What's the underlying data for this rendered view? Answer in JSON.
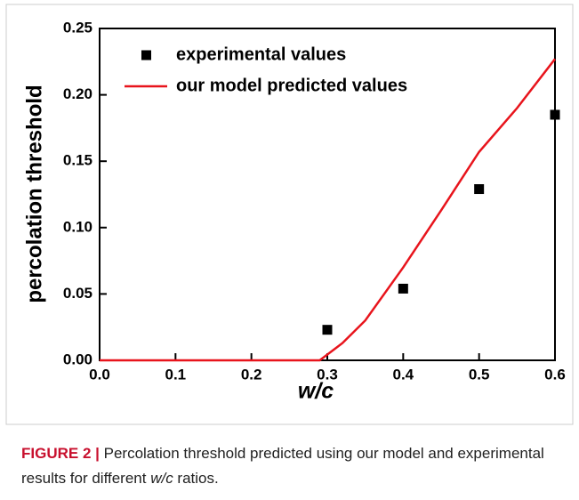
{
  "chart_data": {
    "type": "line",
    "xlabel": "w/c",
    "ylabel": "percolation threshold",
    "xlim": [
      0,
      0.6
    ],
    "xticks": [
      {
        "value": 0,
        "label": "0.0"
      },
      0.1,
      0.2,
      0.3,
      0.4,
      0.5,
      0.6
    ],
    "ylim": [
      0,
      0.25
    ],
    "yticks": [
      {
        "value": 0,
        "label": "0.00"
      },
      0.05,
      {
        "value": 0.1,
        "label": "0.10"
      },
      0.15,
      {
        "value": 0.2,
        "label": "0.20"
      },
      0.25
    ],
    "legend": "upper left",
    "series": [
      {
        "name": "experimental values",
        "color": "#000000",
        "style": "marker",
        "x": [
          0.3,
          0.4,
          0.5,
          0.6
        ],
        "values": [
          0.023,
          0.054,
          0.129,
          0.185
        ]
      },
      {
        "name": "our model predicted values",
        "color": "#e8141c",
        "style": "line",
        "x": [
          0,
          0.29,
          0.32,
          0.35,
          0.4,
          0.45,
          0.5,
          0.55,
          0.6
        ],
        "values": [
          0,
          0,
          0.013,
          0.03,
          0.07,
          0.113,
          0.157,
          0.19,
          0.227
        ]
      }
    ]
  },
  "caption": {
    "label": "FIGURE 2 |",
    "parts": [
      "Percolation threshold predicted using our model and experimental results for different ",
      "w/c",
      " ratios."
    ]
  }
}
